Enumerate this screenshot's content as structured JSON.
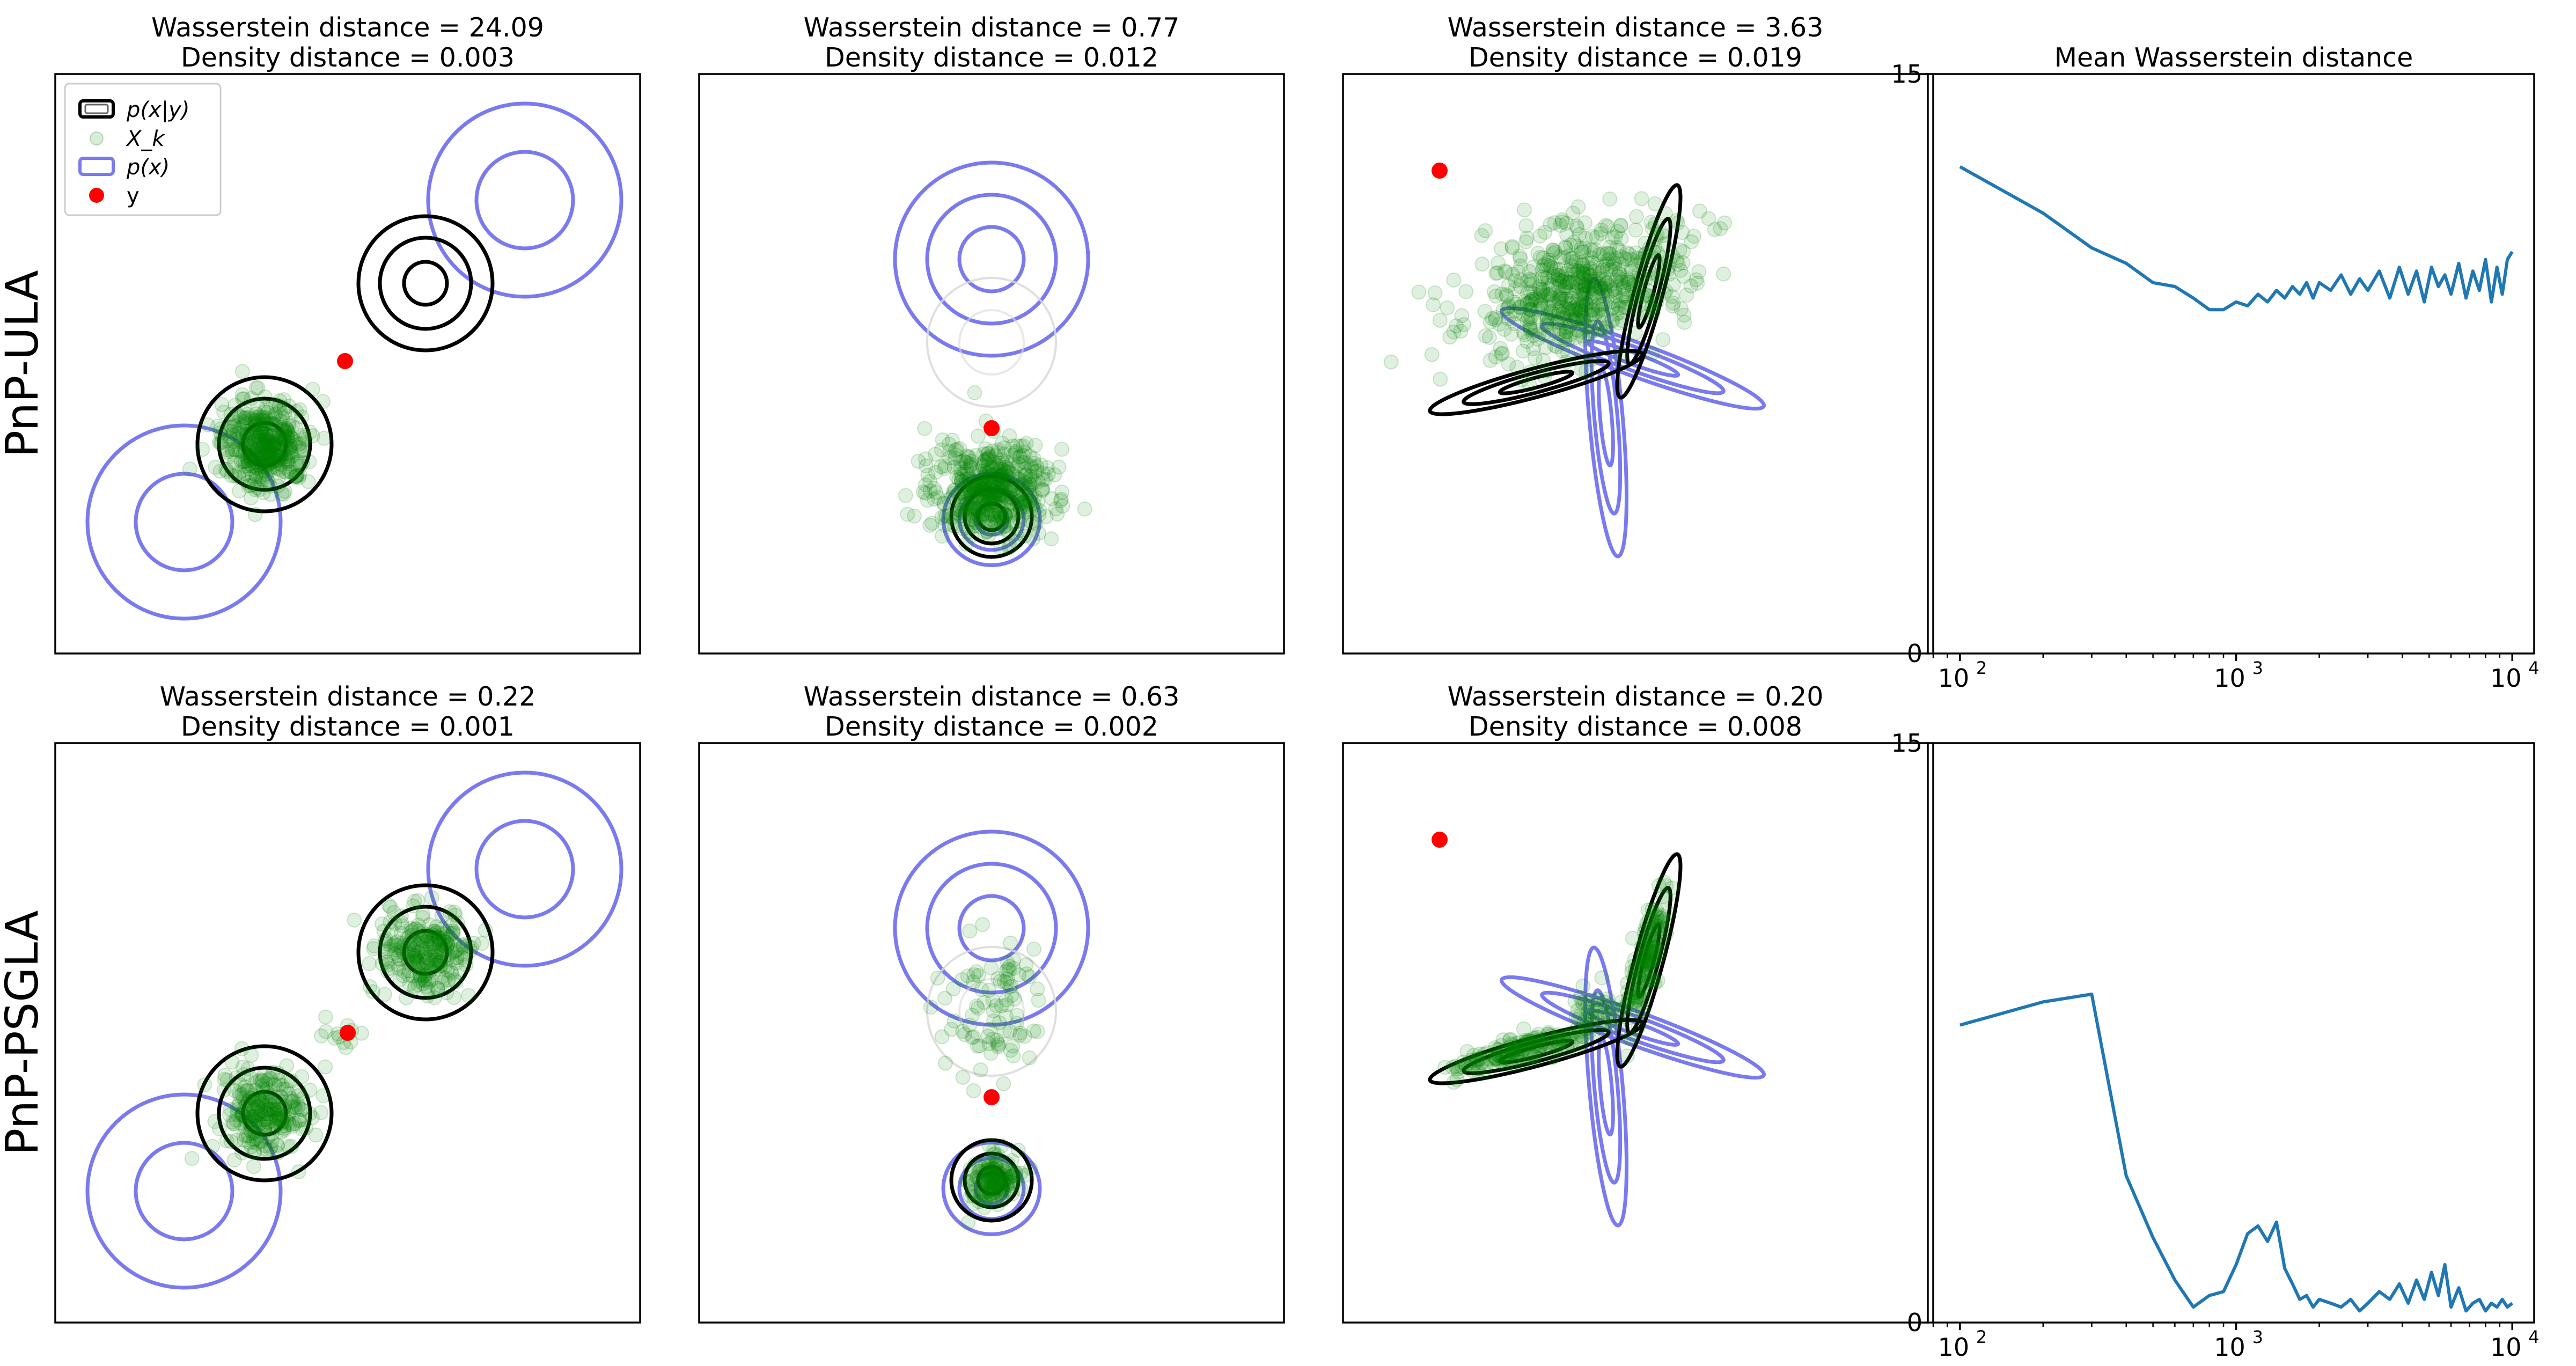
{
  "figure": {
    "row_labels": [
      "PnP-ULA",
      "PnP-PSGLA"
    ],
    "legend": {
      "placement": "upper-left of first panel",
      "items": [
        {
          "label": "p(x|y)",
          "kind": "posterior-contours",
          "color": "#000000"
        },
        {
          "label": "X_k",
          "kind": "samples",
          "color": "#008000"
        },
        {
          "label": "p(x)",
          "kind": "prior-contours",
          "color": "#7a7af0"
        },
        {
          "label": "y",
          "kind": "observation",
          "color": "#ff0000"
        }
      ]
    },
    "colors": {
      "posterior": "#000000",
      "prior": "#7a7af0",
      "samples": "#008000",
      "observation": "#ff0000",
      "line": "#1f77b4"
    }
  },
  "chart_data": [
    {
      "type": "scatter",
      "row": 0,
      "col": 0,
      "title_line1": "Wasserstein distance = 24.09",
      "title_line2": "Density distance = 0.003",
      "wasserstein": 24.09,
      "density": 0.003
    },
    {
      "type": "scatter",
      "row": 0,
      "col": 1,
      "title_line1": "Wasserstein distance = 0.77",
      "title_line2": "Density distance = 0.012",
      "wasserstein": 0.77,
      "density": 0.012
    },
    {
      "type": "scatter",
      "row": 0,
      "col": 2,
      "title_line1": "Wasserstein distance = 3.63",
      "title_line2": "Density distance = 0.019",
      "wasserstein": 3.63,
      "density": 0.019
    },
    {
      "type": "line",
      "row": 0,
      "col": 3,
      "title": "Mean Wasserstein distance",
      "xscale": "log",
      "xlim": [
        80,
        12000
      ],
      "ylim": [
        0,
        15
      ],
      "yticks": [
        "0",
        "15"
      ],
      "xticks": [
        {
          "base": "10",
          "exp": "2"
        },
        {
          "base": "10",
          "exp": "3"
        },
        {
          "base": "10",
          "exp": "4"
        }
      ],
      "x": [
        100,
        200,
        300,
        400,
        500,
        600,
        700,
        800,
        900,
        1000,
        1100,
        1200,
        1300,
        1400,
        1500,
        1600,
        1700,
        1800,
        1900,
        2000,
        2200,
        2400,
        2600,
        2800,
        3000,
        3300,
        3600,
        3900,
        4200,
        4500,
        4800,
        5100,
        5400,
        5700,
        6000,
        6400,
        6800,
        7200,
        7600,
        8000,
        8400,
        8800,
        9200,
        9600,
        10000
      ],
      "y": [
        12.6,
        11.4,
        10.5,
        10.1,
        9.6,
        9.5,
        9.2,
        8.9,
        8.9,
        9.1,
        9.0,
        9.3,
        9.1,
        9.4,
        9.2,
        9.5,
        9.3,
        9.6,
        9.2,
        9.6,
        9.4,
        9.8,
        9.3,
        9.7,
        9.4,
        9.9,
        9.2,
        10.0,
        9.3,
        9.9,
        9.1,
        10.0,
        9.5,
        9.8,
        9.3,
        10.1,
        9.2,
        9.9,
        9.4,
        10.2,
        9.1,
        10.0,
        9.3,
        10.2,
        10.4
      ]
    },
    {
      "type": "scatter",
      "row": 1,
      "col": 0,
      "title_line1": "Wasserstein distance = 0.22",
      "title_line2": "Density distance = 0.001",
      "wasserstein": 0.22,
      "density": 0.001
    },
    {
      "type": "scatter",
      "row": 1,
      "col": 1,
      "title_line1": "Wasserstein distance = 0.63",
      "title_line2": "Density distance = 0.002",
      "wasserstein": 0.63,
      "density": 0.002
    },
    {
      "type": "scatter",
      "row": 1,
      "col": 2,
      "title_line1": "Wasserstein distance = 0.20",
      "title_line2": "Density distance = 0.008",
      "wasserstein": 0.2,
      "density": 0.008
    },
    {
      "type": "line",
      "row": 1,
      "col": 3,
      "title": "",
      "xscale": "log",
      "xlim": [
        80,
        12000
      ],
      "ylim": [
        0,
        15
      ],
      "yticks": [
        "0",
        "15"
      ],
      "xticks": [
        {
          "base": "10",
          "exp": "2"
        },
        {
          "base": "10",
          "exp": "3"
        },
        {
          "base": "10",
          "exp": "4"
        }
      ],
      "x": [
        100,
        200,
        300,
        400,
        500,
        600,
        700,
        800,
        900,
        1000,
        1100,
        1200,
        1300,
        1400,
        1500,
        1600,
        1700,
        1800,
        1900,
        2000,
        2200,
        2400,
        2600,
        2800,
        3000,
        3300,
        3600,
        3900,
        4200,
        4500,
        4800,
        5100,
        5400,
        5700,
        6000,
        6400,
        6800,
        7200,
        7600,
        8000,
        8400,
        8800,
        9200,
        9600,
        10000
      ],
      "y": [
        7.7,
        8.3,
        8.5,
        3.8,
        2.2,
        1.1,
        0.4,
        0.7,
        0.8,
        1.5,
        2.3,
        2.5,
        2.1,
        2.6,
        1.4,
        1.0,
        0.6,
        0.7,
        0.4,
        0.6,
        0.5,
        0.4,
        0.6,
        0.3,
        0.5,
        0.8,
        0.6,
        1.0,
        0.5,
        1.1,
        0.6,
        1.3,
        0.7,
        1.5,
        0.4,
        0.9,
        0.3,
        0.5,
        0.6,
        0.3,
        0.5,
        0.4,
        0.6,
        0.4,
        0.5
      ]
    }
  ]
}
